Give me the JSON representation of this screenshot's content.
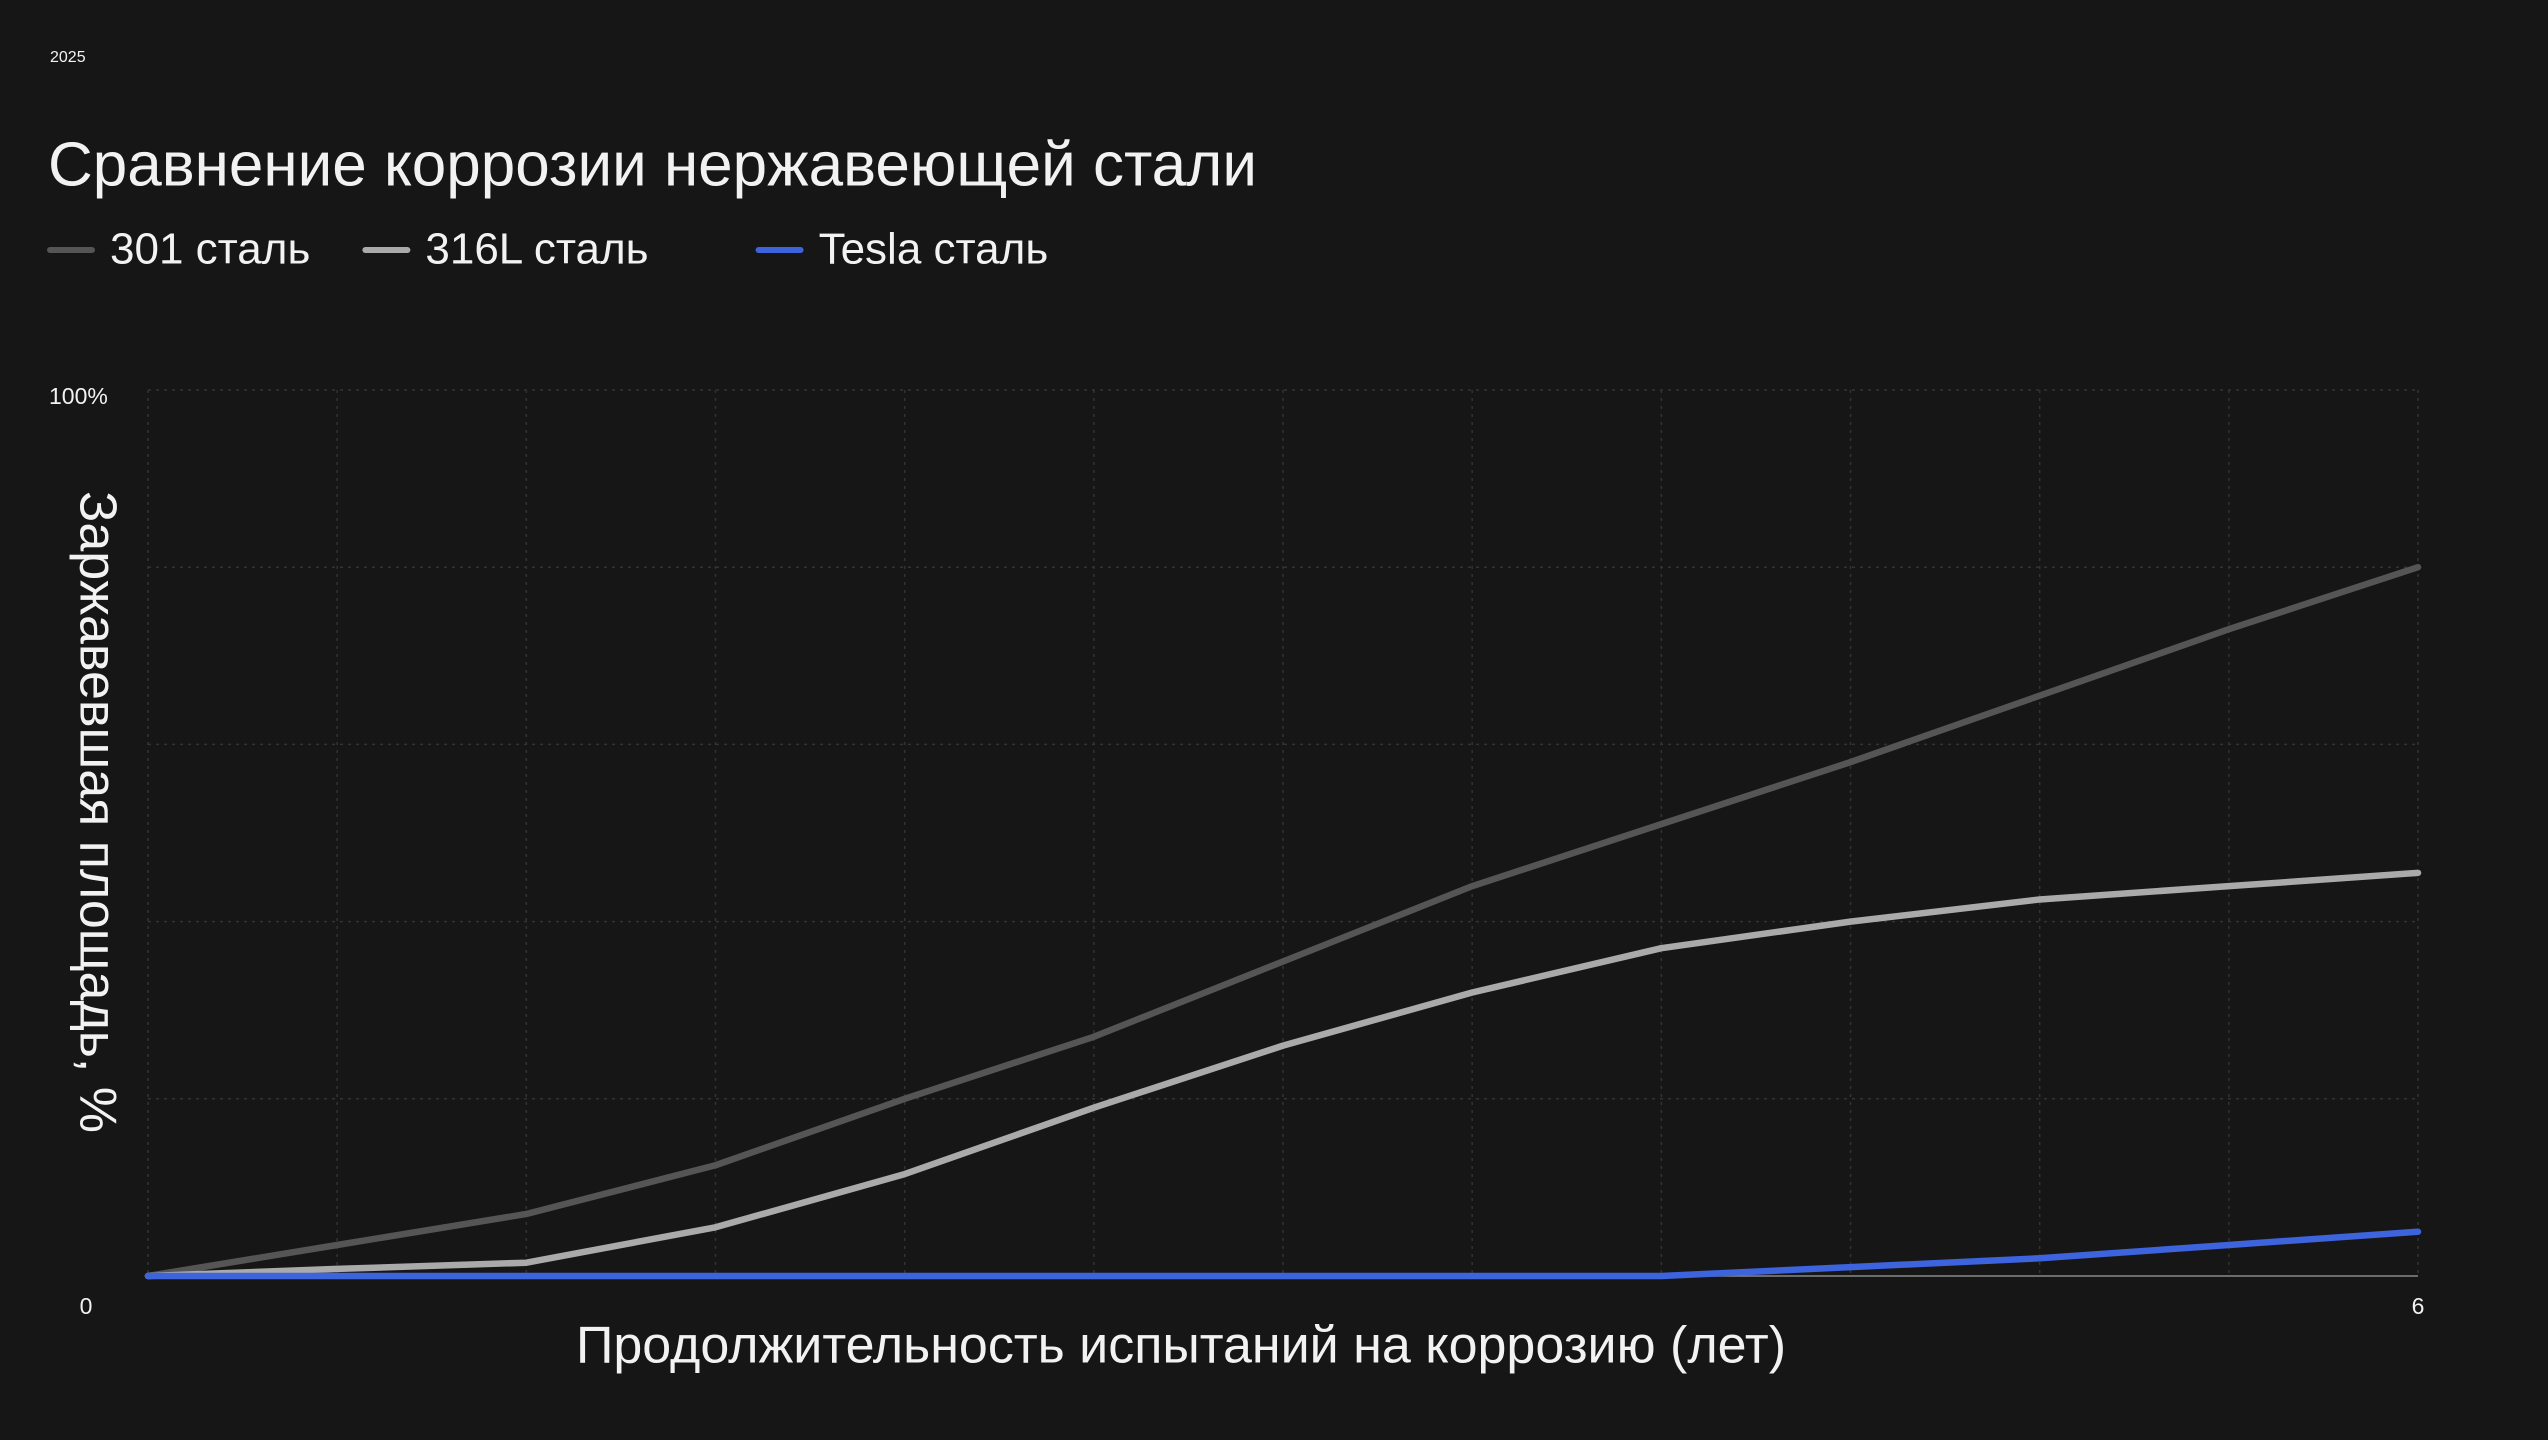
{
  "chart_data": {
    "type": "line",
    "year_label": "2025",
    "title": "Сравнение коррозии нержавеющей стали",
    "x_label": "Продолжительность испытаний на коррозию (лет)",
    "y_label": "Заржавевшая площадь, %",
    "x": [
      0,
      0.5,
      1,
      1.5,
      2,
      2.5,
      3,
      3.5,
      4,
      4.5,
      5,
      5.5,
      6
    ],
    "series": [
      {
        "name": "301 сталь",
        "color": "#555555",
        "values": [
          0,
          3.5,
          7,
          12.5,
          20,
          27,
          35.5,
          44,
          51,
          58,
          65.5,
          73,
          80
        ]
      },
      {
        "name": "316L сталь",
        "color": "#aaaaaa",
        "values": [
          0,
          0.8,
          1.5,
          5.5,
          11.5,
          19,
          26,
          32,
          37,
          40,
          42.5,
          44,
          45.5
        ]
      },
      {
        "name": "Tesla сталь",
        "color": "#3d63dd",
        "values": [
          0,
          0,
          0,
          0,
          0,
          0,
          0,
          0,
          0,
          1,
          2,
          3.5,
          5
        ]
      }
    ],
    "xlim": [
      0,
      6
    ],
    "ylim": [
      0,
      100
    ],
    "xticks": [
      6
    ],
    "yticks": [
      0,
      {
        "value": 100,
        "label": "100%"
      }
    ],
    "grid": {
      "x_step": 0.5,
      "y_step": 20
    }
  }
}
